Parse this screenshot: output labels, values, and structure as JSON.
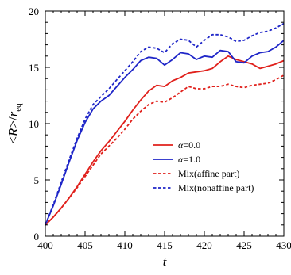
{
  "chart_data": {
    "type": "line",
    "xlabel": "t",
    "ylabel_parts": {
      "open": "<",
      "var": "R",
      "close": ">/",
      "r": "r",
      "sub": "eq"
    },
    "xlim": [
      400,
      430
    ],
    "ylim": [
      0,
      20
    ],
    "xticks": [
      400,
      405,
      410,
      415,
      420,
      425,
      430
    ],
    "yticks": [
      0,
      5,
      10,
      15,
      20
    ],
    "grid": false,
    "legend_position": "center-right",
    "legend": [
      {
        "prefix": "",
        "greek": "α",
        "text": "=0.0"
      },
      {
        "prefix": "",
        "greek": "α",
        "text": "=1.0"
      },
      {
        "prefix": "Mix(affine part)",
        "greek": "",
        "text": ""
      },
      {
        "prefix": "Mix(nonaffine part)",
        "greek": "",
        "text": ""
      }
    ],
    "series": [
      {
        "color": "#e0201b",
        "dash": "solid",
        "x": [
          400,
          401,
          402,
          403,
          404,
          405,
          406,
          407,
          408,
          409,
          410,
          411,
          412,
          413,
          414,
          415,
          416,
          417,
          418,
          419,
          420,
          421,
          422,
          423,
          424,
          425,
          426,
          427,
          428,
          429,
          430
        ],
        "y": [
          1.0,
          1.7,
          2.5,
          3.4,
          4.4,
          5.5,
          6.6,
          7.6,
          8.4,
          9.3,
          10.2,
          11.2,
          12.1,
          12.9,
          13.4,
          13.3,
          13.8,
          14.1,
          14.5,
          14.6,
          14.7,
          14.9,
          15.5,
          16.0,
          15.7,
          15.5,
          15.3,
          14.9,
          15.1,
          15.3,
          15.6
        ]
      },
      {
        "color": "#1f26c8",
        "dash": "solid",
        "x": [
          400,
          401,
          402,
          403,
          404,
          405,
          406,
          407,
          408,
          409,
          410,
          411,
          412,
          413,
          414,
          415,
          416,
          417,
          418,
          419,
          420,
          421,
          422,
          423,
          424,
          425,
          426,
          427,
          428,
          429,
          430
        ],
        "y": [
          1.0,
          2.7,
          4.6,
          6.6,
          8.5,
          10.1,
          11.3,
          12.0,
          12.5,
          13.3,
          14.1,
          14.8,
          15.6,
          15.9,
          15.8,
          15.2,
          15.7,
          16.3,
          16.2,
          15.7,
          16.0,
          15.9,
          16.5,
          16.4,
          15.5,
          15.4,
          16.0,
          16.3,
          16.4,
          16.8,
          17.4
        ]
      },
      {
        "color": "#e0201b",
        "dash": "dashed",
        "x": [
          400,
          401,
          402,
          403,
          404,
          405,
          406,
          407,
          408,
          409,
          410,
          411,
          412,
          413,
          414,
          415,
          416,
          417,
          418,
          419,
          420,
          421,
          422,
          423,
          424,
          425,
          426,
          427,
          428,
          429,
          430
        ],
        "y": [
          1.0,
          1.7,
          2.5,
          3.4,
          4.3,
          5.3,
          6.3,
          7.3,
          8.0,
          8.7,
          9.5,
          10.4,
          11.1,
          11.7,
          12.0,
          11.9,
          12.3,
          12.8,
          13.3,
          13.1,
          13.1,
          13.3,
          13.3,
          13.5,
          13.3,
          13.2,
          13.4,
          13.5,
          13.6,
          13.9,
          14.3
        ]
      },
      {
        "color": "#1f26c8",
        "dash": "dashed",
        "x": [
          400,
          401,
          402,
          403,
          404,
          405,
          406,
          407,
          408,
          409,
          410,
          411,
          412,
          413,
          414,
          415,
          416,
          417,
          418,
          419,
          420,
          421,
          422,
          423,
          424,
          425,
          426,
          427,
          428,
          429,
          430
        ],
        "y": [
          1.0,
          2.8,
          4.8,
          6.8,
          8.7,
          10.4,
          11.7,
          12.4,
          13.1,
          13.9,
          14.7,
          15.5,
          16.4,
          16.8,
          16.7,
          16.3,
          17.1,
          17.5,
          17.4,
          16.8,
          17.4,
          17.9,
          17.9,
          17.7,
          17.3,
          17.4,
          17.8,
          18.1,
          18.2,
          18.5,
          18.9
        ]
      }
    ]
  }
}
